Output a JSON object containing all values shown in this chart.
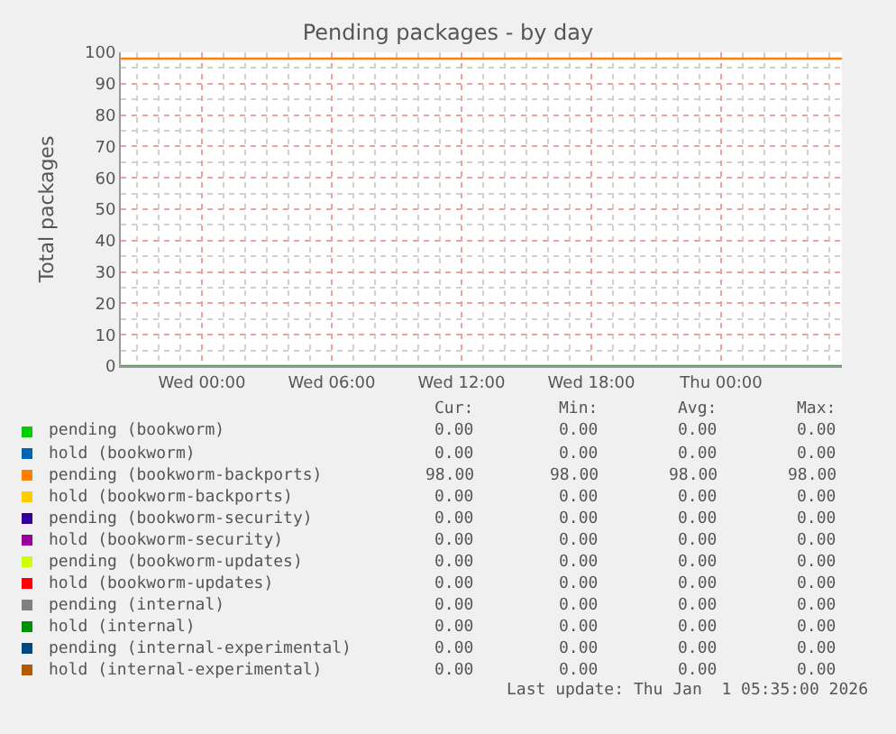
{
  "chart_data": {
    "type": "line",
    "title": "Pending packages - by day",
    "ylabel": "Total packages",
    "x": [
      "2025-12-30T20:15",
      "2026-01-01T05:35"
    ],
    "xlim": [
      "2025-12-30T20:15",
      "2026-01-01T05:35"
    ],
    "xticks": [
      {
        "value": "2025-12-31T00:00",
        "label": "Wed 00:00"
      },
      {
        "value": "2025-12-31T06:00",
        "label": "Wed 06:00"
      },
      {
        "value": "2025-12-31T12:00",
        "label": "Wed 12:00"
      },
      {
        "value": "2025-12-31T18:00",
        "label": "Wed 18:00"
      },
      {
        "value": "2026-01-01T00:00",
        "label": "Thu 00:00"
      }
    ],
    "ylim": [
      0,
      100
    ],
    "yticks": [
      0,
      10,
      20,
      30,
      40,
      50,
      60,
      70,
      80,
      90,
      100
    ],
    "grid": true,
    "legend": "bottom",
    "marker": "none",
    "line_style": "solid",
    "annotations": [
      "Cur:",
      "Min:",
      "Avg:",
      "Max:",
      "0.00",
      "0.00",
      "0.00",
      "0.00",
      "0.00",
      "0.00",
      "0.00",
      "0.00",
      "98.00",
      "98.00",
      "98.00",
      "98.00",
      "0.00",
      "0.00",
      "0.00",
      "0.00",
      "0.00",
      "0.00",
      "0.00",
      "0.00",
      "0.00",
      "0.00",
      "0.00",
      "0.00",
      "0.00",
      "0.00",
      "0.00",
      "0.00",
      "0.00",
      "0.00",
      "0.00",
      "0.00",
      "0.00",
      "0.00",
      "0.00",
      "0.00",
      "0.00",
      "0.00",
      "0.00",
      "0.00",
      "0.00",
      "0.00",
      "0.00",
      "0.00",
      "0.00",
      "0.00",
      "0.00",
      "0.00",
      "Last update: Thu Jan  1 05:35:00 2026"
    ],
    "series": [
      {
        "name": "pending (bookworm)",
        "color": "#00cc00",
        "values": [
          0,
          0
        ]
      },
      {
        "name": "hold (bookworm)",
        "color": "#0066b3",
        "values": [
          null,
          null
        ]
      },
      {
        "name": "pending (bookworm-backports)",
        "color": "#ff8000",
        "values": [
          98,
          98
        ]
      },
      {
        "name": "hold (bookworm-backports)",
        "color": "#ffcc00",
        "values": [
          null,
          null
        ]
      },
      {
        "name": "pending (bookworm-security)",
        "color": "#330099",
        "values": [
          null,
          null
        ]
      },
      {
        "name": "hold (bookworm-security)",
        "color": "#990099",
        "values": [
          null,
          null
        ]
      },
      {
        "name": "pending (bookworm-updates)",
        "color": "#ccff00",
        "values": [
          null,
          null
        ]
      },
      {
        "name": "hold (bookworm-updates)",
        "color": "#ff0000",
        "values": [
          null,
          null
        ]
      },
      {
        "name": "pending (internal)",
        "color": "#808080",
        "values": [
          null,
          null
        ]
      },
      {
        "name": "hold (internal)",
        "color": "#008f00",
        "values": [
          null,
          null
        ]
      },
      {
        "name": "pending (internal-experimental)",
        "color": "#00487d",
        "values": [
          null,
          null
        ]
      },
      {
        "name": "hold (internal-experimental)",
        "color": "#b35a00",
        "values": [
          null,
          null
        ]
      }
    ]
  }
}
